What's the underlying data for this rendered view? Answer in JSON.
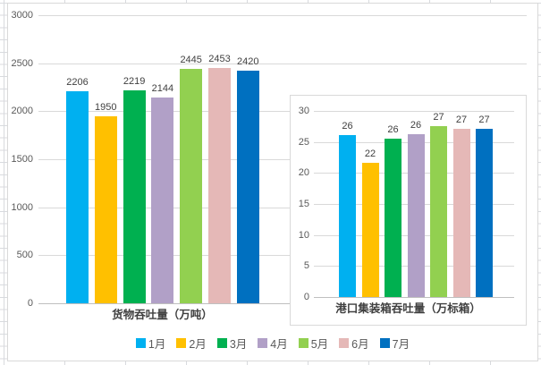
{
  "colors": {
    "gridline": "#d9d9d9",
    "axis_line": "#bfbfbf",
    "tick_label": "#595959",
    "data_label": "#3f3f3f",
    "title": "#404040",
    "chart_border": "#d9d9d9"
  },
  "legend": {
    "items": [
      {
        "label": "1月",
        "color": "#00B0F0"
      },
      {
        "label": "2月",
        "color": "#FFC000"
      },
      {
        "label": "3月",
        "color": "#00B050"
      },
      {
        "label": "4月",
        "color": "#B1A0C7"
      },
      {
        "label": "5月",
        "color": "#92D050"
      },
      {
        "label": "6月",
        "color": "#E5B8B7"
      },
      {
        "label": "7月",
        "color": "#0070C0"
      }
    ]
  },
  "chart_data": [
    {
      "type": "bar",
      "title": "货物吞吐量（万吨）",
      "xlabel": "货物吞吐量（万吨）",
      "ylabel": "",
      "categories": [
        "1月",
        "2月",
        "3月",
        "4月",
        "5月",
        "6月",
        "7月"
      ],
      "values": [
        2206,
        1950,
        2219,
        2144,
        2445,
        2453,
        2420
      ],
      "data_labels": [
        "2206",
        "1950",
        "2219",
        "2144",
        "2445",
        "2453",
        "2420"
      ],
      "ylim": [
        0,
        3000
      ],
      "yticks": [
        3000,
        2500,
        2000,
        1500,
        1000,
        500,
        0
      ],
      "grid": true,
      "legend_position": "bottom",
      "bar_colors": [
        "#00B0F0",
        "#FFC000",
        "#00B050",
        "#B1A0C7",
        "#92D050",
        "#E5B8B7",
        "#0070C0"
      ]
    },
    {
      "type": "bar",
      "title": "港口集装箱吞吐量（万标箱）",
      "xlabel": "港口集装箱吞吐量（万标箱）",
      "ylabel": "",
      "inset": true,
      "categories": [
        "1月",
        "2月",
        "3月",
        "4月",
        "5月",
        "6月",
        "7月"
      ],
      "values": [
        26,
        22,
        26,
        26,
        27,
        27,
        27
      ],
      "data_labels": [
        "26",
        "22",
        "26",
        "26",
        "27",
        "27",
        "27"
      ],
      "values_precise": [
        26.1,
        21.6,
        25.6,
        26.2,
        27.5,
        27.1,
        27.1
      ],
      "ylim": [
        0,
        30
      ],
      "yticks": [
        30,
        25,
        20,
        15,
        10,
        5,
        0
      ],
      "grid": true,
      "legend_position": "none",
      "bar_colors": [
        "#00B0F0",
        "#FFC000",
        "#00B050",
        "#B1A0C7",
        "#92D050",
        "#E5B8B7",
        "#0070C0"
      ]
    }
  ]
}
